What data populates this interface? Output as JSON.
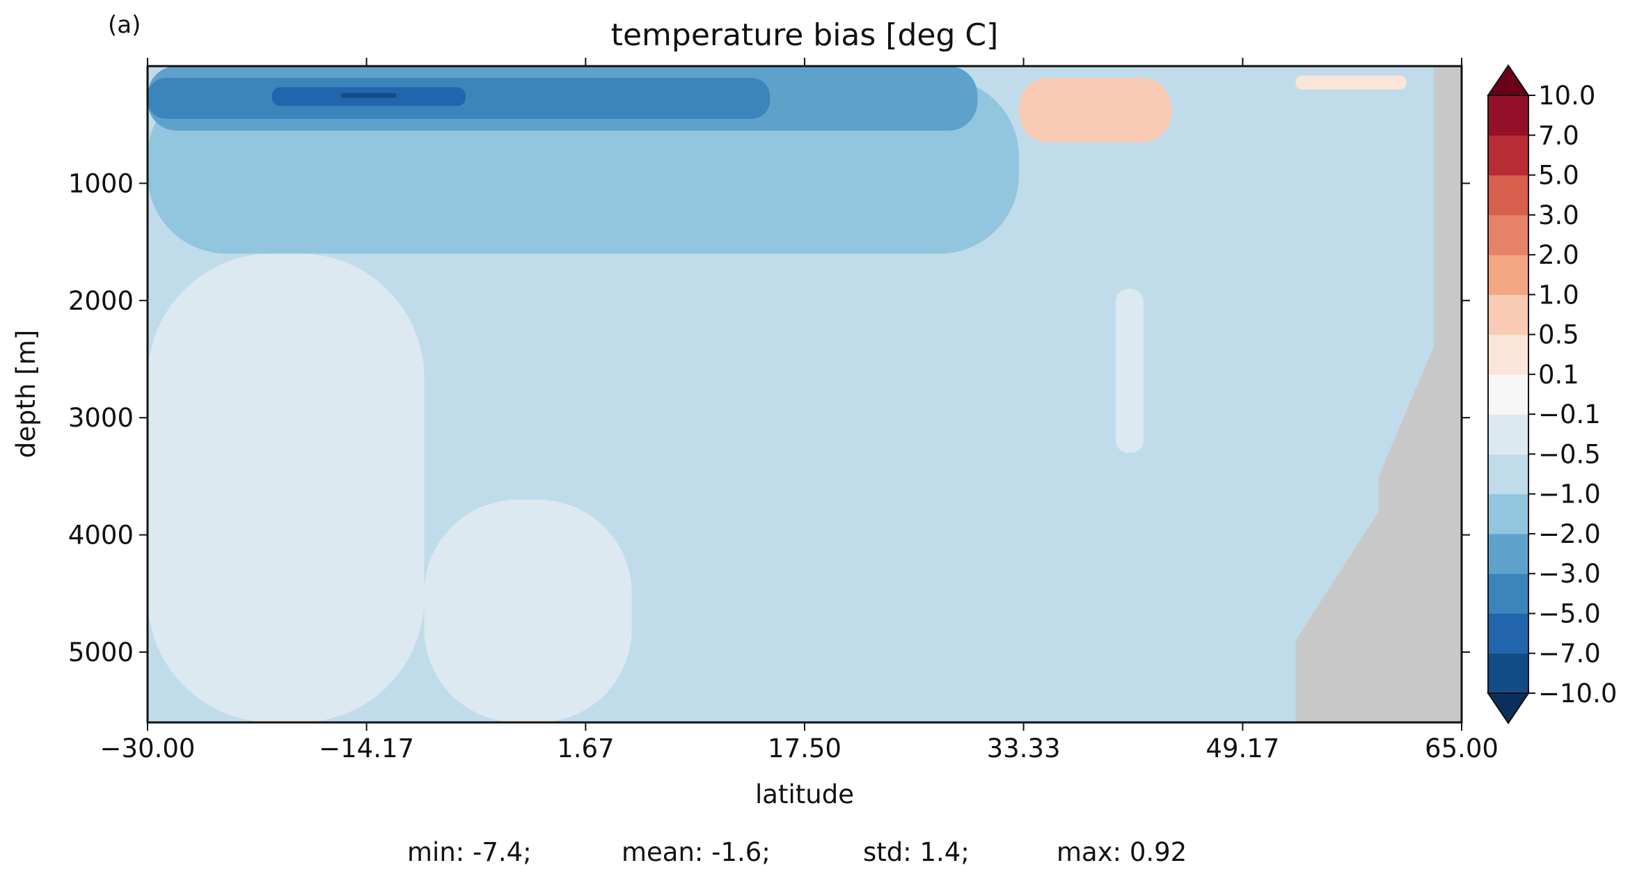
{
  "panel_label": "(a)",
  "chart_data": {
    "type": "heatmap",
    "subtype": "filled-contour",
    "title": "temperature bias [deg C]",
    "xlabel": "latitude",
    "ylabel": "depth [m]",
    "xlim": [
      -30.0,
      65.0
    ],
    "ylim": [
      5600,
      0
    ],
    "x_ticks": [
      -30.0,
      -14.17,
      1.67,
      17.5,
      33.33,
      49.17,
      65.0
    ],
    "x_tick_labels": [
      "−30.00",
      "−14.17",
      "1.67",
      "17.50",
      "33.33",
      "49.17",
      "65.00"
    ],
    "y_ticks": [
      1000,
      2000,
      3000,
      4000,
      5000
    ],
    "y_tick_labels": [
      "1000",
      "2000",
      "3000",
      "4000",
      "5000"
    ],
    "land_color": "#c8c8c8",
    "colorbar": {
      "levels": [
        -10.0,
        -7.0,
        -5.0,
        -3.0,
        -2.0,
        -1.0,
        -0.5,
        -0.1,
        0.1,
        0.5,
        1.0,
        2.0,
        3.0,
        5.0,
        7.0,
        10.0
      ],
      "tick_labels": [
        "−10.0",
        "−7.0",
        "−5.0",
        "−3.0",
        "−2.0",
        "−1.0",
        "−0.5",
        "−0.1",
        "0.1",
        "0.5",
        "1.0",
        "2.0",
        "3.0",
        "5.0",
        "7.0",
        "10.0"
      ],
      "colors": [
        "#134b87",
        "#2166ac",
        "#3a85bc",
        "#5ea2cc",
        "#92c5de",
        "#c0dcea",
        "#dde9f0",
        "#f7f7f7",
        "#fbe5d8",
        "#f9cbb4",
        "#f4a582",
        "#e58268",
        "#d6604d",
        "#b72c35",
        "#941028"
      ],
      "extend_low_color": "#0a2f5c",
      "extend_high_color": "#6b0019"
    },
    "regions": [
      {
        "range": "-1.0 to -0.5",
        "x": [
          -30.0,
          65.0
        ],
        "depth": [
          0,
          5600
        ]
      },
      {
        "range": "-0.5 to -0.1",
        "x": [
          -30.0,
          -10.0
        ],
        "depth": [
          1600,
          5600
        ]
      },
      {
        "range": "-0.5 to -0.1",
        "x": [
          -10.0,
          5.0
        ],
        "depth": [
          3700,
          5600
        ]
      },
      {
        "range": "-0.5 to -0.1",
        "x": [
          40.0,
          42.0
        ],
        "depth": [
          1900,
          3300
        ]
      },
      {
        "range": "-2.0 to -1.0",
        "x": [
          -30.0,
          33.0
        ],
        "depth": [
          100,
          1600
        ]
      },
      {
        "range": "-3.0 to -2.0",
        "x": [
          -30.0,
          30.0
        ],
        "depth": [
          0,
          550
        ]
      },
      {
        "range": "-5.0 to -3.0",
        "x": [
          -30.0,
          15.0
        ],
        "depth": [
          100,
          450
        ]
      },
      {
        "range": "-7.0 to -5.0",
        "x": [
          -21.0,
          -7.0
        ],
        "depth": [
          180,
          340
        ]
      },
      {
        "range": "-10.0 to -7.0",
        "x": [
          -16.0,
          -12.0
        ],
        "depth": [
          230,
          270
        ]
      },
      {
        "range": "0.5 to 1.0",
        "x": [
          33.0,
          44.0
        ],
        "depth": [
          100,
          650
        ]
      },
      {
        "range": "0.1 to 0.5",
        "x": [
          53.0,
          61.0
        ],
        "depth": [
          80,
          200
        ]
      }
    ],
    "land": [
      {
        "x": [
          53.0,
          65.0
        ],
        "depth_top_at_edge": [
          4900,
          0
        ]
      }
    ]
  },
  "stats": {
    "min": "min: -7.4;",
    "mean": "mean: -1.6;",
    "std": "std: 1.4;",
    "max": "max: 0.92"
  }
}
